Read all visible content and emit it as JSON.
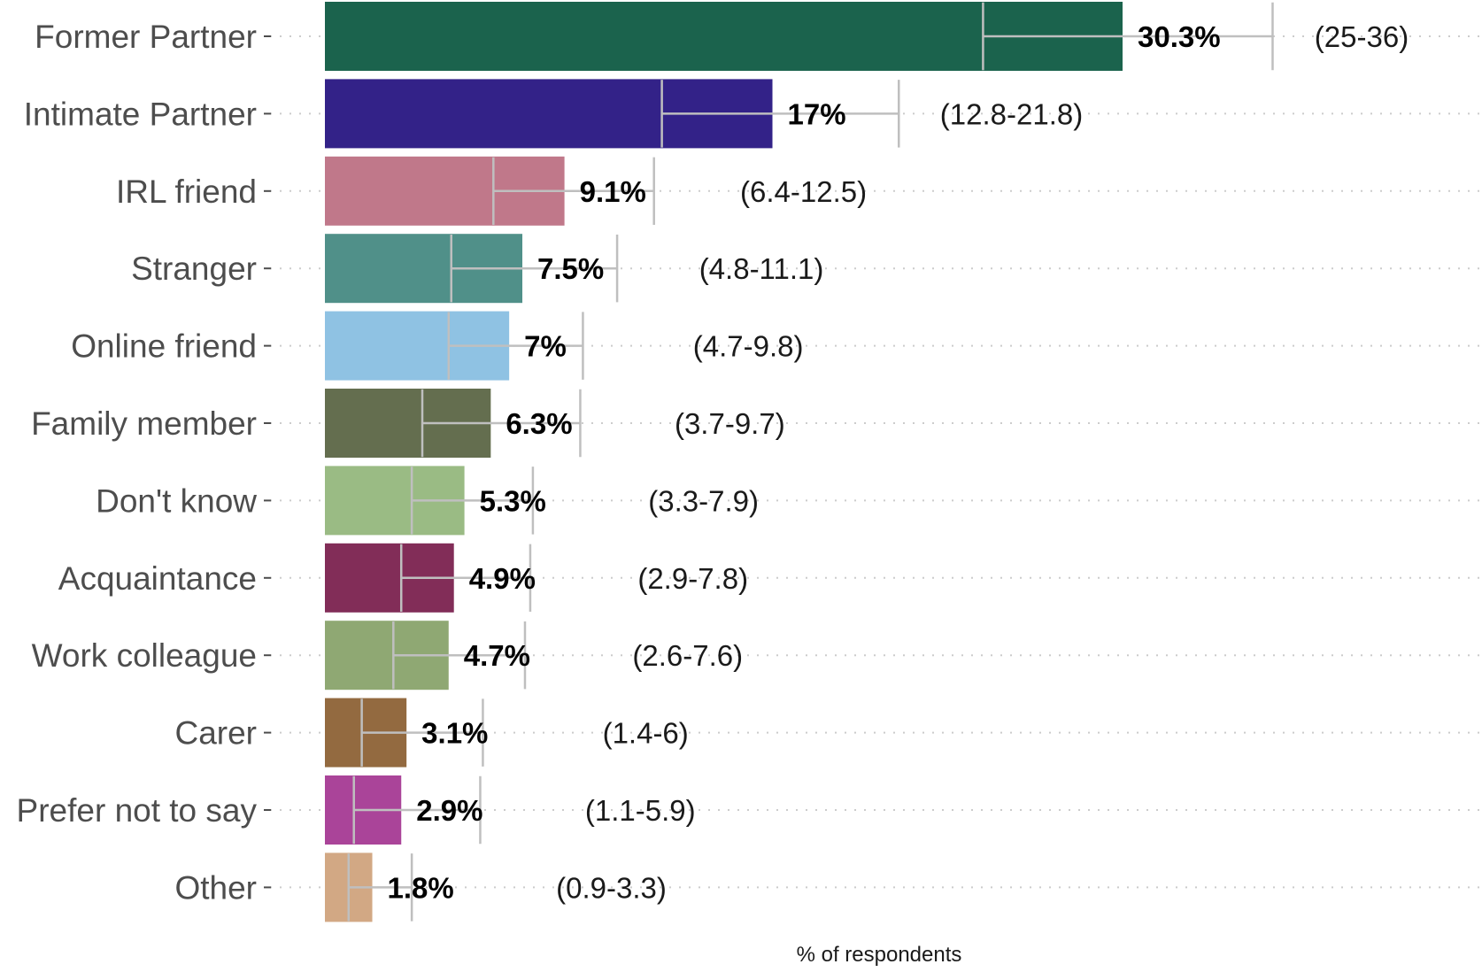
{
  "chart_data": {
    "type": "bar",
    "orientation": "horizontal",
    "xlabel": "% of respondents",
    "ylabel": "",
    "xlim": [
      0,
      37
    ],
    "grid": "dotted horizontal lines",
    "categories": [
      "Former Partner",
      "Intimate Partner",
      "IRL friend",
      "Stranger",
      "Online friend",
      "Family member",
      "Don't know",
      "Acquaintance",
      "Work colleague",
      "Carer",
      "Prefer not to say",
      "Other"
    ],
    "values": [
      30.3,
      17,
      9.1,
      7.5,
      7,
      6.3,
      5.3,
      4.9,
      4.7,
      3.1,
      2.9,
      1.8
    ],
    "value_labels": [
      "30.3%",
      "17%",
      "9.1%",
      "7.5%",
      "7%",
      "6.3%",
      "5.3%",
      "4.9%",
      "4.7%",
      "3.1%",
      "2.9%",
      "1.8%"
    ],
    "ci_low": [
      25,
      12.8,
      6.4,
      4.8,
      4.7,
      3.7,
      3.3,
      2.9,
      2.6,
      1.4,
      1.1,
      0.9
    ],
    "ci_high": [
      36,
      21.8,
      12.5,
      11.1,
      9.8,
      9.7,
      7.9,
      7.8,
      7.6,
      6,
      5.9,
      3.3
    ],
    "ci_labels": [
      "(25-36)",
      "(12.8-21.8)",
      "(6.4-12.5)",
      "(4.8-11.1)",
      "(4.7-9.8)",
      "(3.7-9.7)",
      "(3.3-7.9)",
      "(2.9-7.8)",
      "(2.6-7.6)",
      "(1.4-6)",
      "(1.1-5.9)",
      "(0.9-3.3)"
    ],
    "colors": [
      "#1b634d",
      "#332288",
      "#c0788a",
      "#509089",
      "#8fc2e3",
      "#646e4f",
      "#9abb84",
      "#822d58",
      "#8fa873",
      "#936a40",
      "#aa4499",
      "#d2a884"
    ],
    "errorbar_color": "#bfbfbf",
    "grid_color": "#cccccc"
  }
}
